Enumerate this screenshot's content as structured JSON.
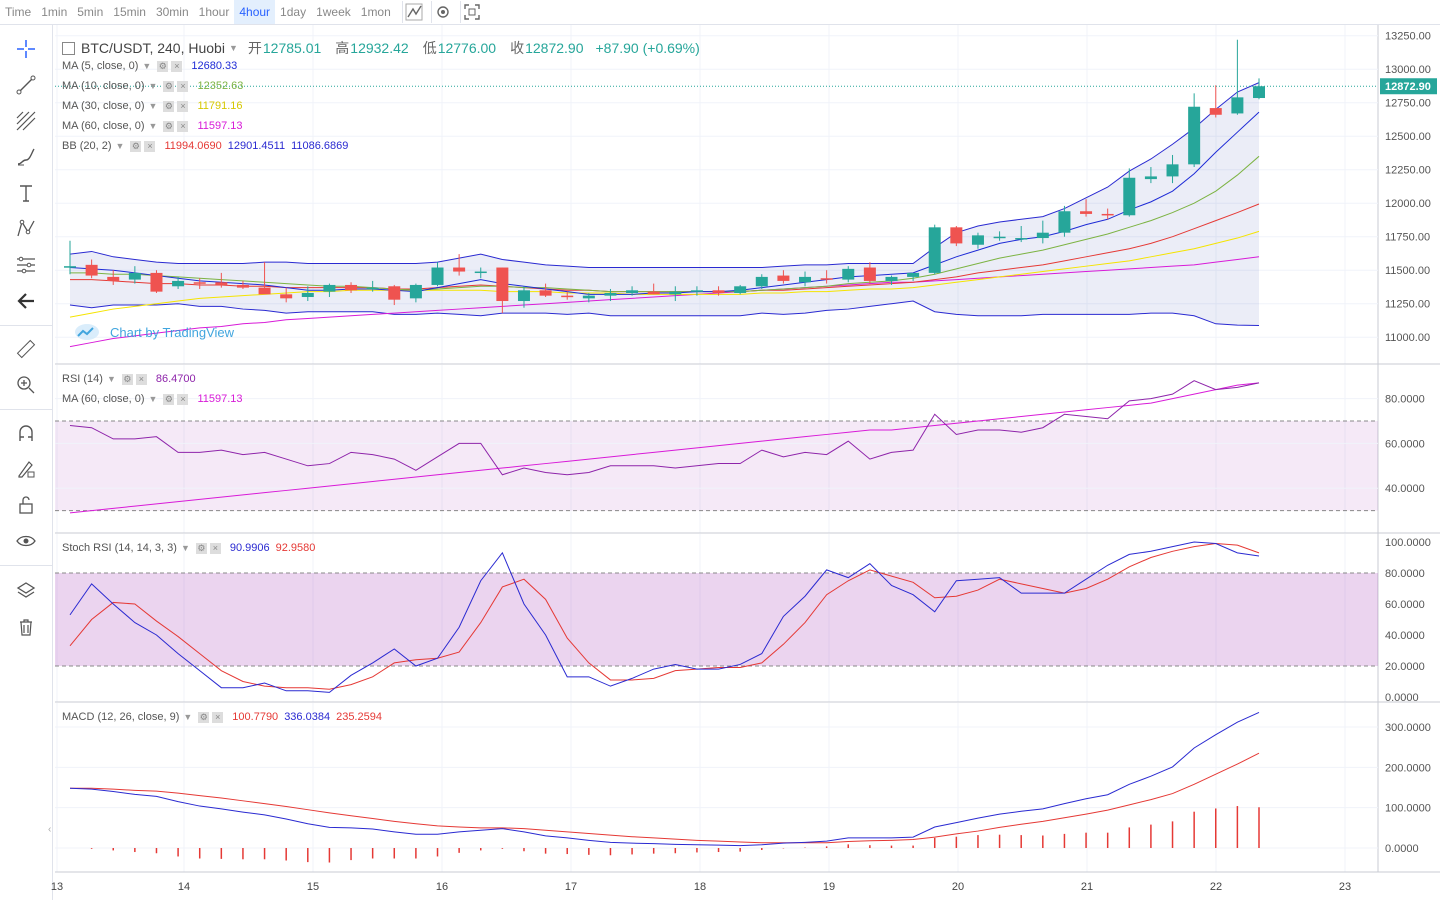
{
  "toolbar": {
    "timeframes": [
      "Time",
      "1min",
      "5min",
      "15min",
      "30min",
      "1hour",
      "4hour",
      "1day",
      "1week",
      "1mon"
    ],
    "active_timeframe": "4hour"
  },
  "header": {
    "symbol": "BTC/USDT, 240, Huobi",
    "open_label": "开",
    "open": "12785.01",
    "high_label": "高",
    "high": "12932.42",
    "low_label": "低",
    "low": "12776.00",
    "close_label": "收",
    "close": "12872.90",
    "change": "+87.90 (+0.69%)"
  },
  "indicators": {
    "ma5": {
      "name": "MA (5, close, 0)",
      "value": "12680.33",
      "color": "#1e2bd6"
    },
    "ma10": {
      "name": "MA (10, close, 0)",
      "value": "12352.63",
      "color": "#7cb342"
    },
    "ma30": {
      "name": "MA (30, close, 0)",
      "value": "11791.16",
      "color": "#f5e400"
    },
    "ma60": {
      "name": "MA (60, close, 0)",
      "value": "11597.13",
      "color": "#d81bd8"
    },
    "bb": {
      "name": "BB (20, 2)",
      "middle": "11994.0690",
      "upper": "12901.4511",
      "lower": "11086.6869",
      "middle_color": "#e53935",
      "band_color": "#2a2ad1"
    },
    "rsi": {
      "name": "RSI (14)",
      "value": "86.4700",
      "ma_name": "MA (60, close, 0)",
      "ma_value": "11597.13"
    },
    "stoch": {
      "name": "Stoch RSI (14, 14, 3, 3)",
      "k": "90.9906",
      "d": "92.9580"
    },
    "macd": {
      "name": "MACD (12, 26, close, 9)",
      "hist": "100.7790",
      "macd": "336.0384",
      "signal": "235.2594"
    }
  },
  "watermark": "Chart by TradingView",
  "colors": {
    "up": "#26a69a",
    "down": "#ef5350",
    "grid": "#f0f3fa"
  },
  "chart_data": {
    "type": "candlestick",
    "title": "BTC/USDT, 240, Huobi",
    "x_tick_labels": [
      "13",
      "14",
      "15",
      "16",
      "17",
      "18",
      "19",
      "20",
      "21",
      "22",
      "23"
    ],
    "price_axis": {
      "ticks": [
        "13250.00",
        "13000.00",
        "12750.00",
        "12500.00",
        "12250.00",
        "12000.00",
        "11750.00",
        "11500.00",
        "11250.00",
        "11000.00"
      ],
      "ylim": [
        10800,
        13330
      ],
      "last_price": "12872.90"
    },
    "candles_ohlc": [
      [
        11520,
        11720,
        11470,
        11530
      ],
      [
        11540,
        11580,
        11440,
        11460
      ],
      [
        11450,
        11500,
        11390,
        11420
      ],
      [
        11430,
        11530,
        11400,
        11480
      ],
      [
        11480,
        11500,
        11330,
        11340
      ],
      [
        11380,
        11450,
        11360,
        11420
      ],
      [
        11410,
        11440,
        11360,
        11400
      ],
      [
        11410,
        11480,
        11370,
        11390
      ],
      [
        11390,
        11420,
        11360,
        11370
      ],
      [
        11370,
        11560,
        11350,
        11320
      ],
      [
        11320,
        11370,
        11260,
        11290
      ],
      [
        11300,
        11380,
        11270,
        11330
      ],
      [
        11340,
        11400,
        11300,
        11390
      ],
      [
        11390,
        11410,
        11330,
        11350
      ],
      [
        11360,
        11420,
        11340,
        11370
      ],
      [
        11380,
        11390,
        11240,
        11280
      ],
      [
        11290,
        11400,
        11260,
        11390
      ],
      [
        11390,
        11560,
        11380,
        11520
      ],
      [
        11520,
        11620,
        11460,
        11490
      ],
      [
        11490,
        11520,
        11440,
        11490
      ],
      [
        11520,
        11520,
        11180,
        11270
      ],
      [
        11270,
        11380,
        11220,
        11350
      ],
      [
        11350,
        11400,
        11300,
        11310
      ],
      [
        11310,
        11340,
        11280,
        11300
      ],
      [
        11290,
        11330,
        11260,
        11310
      ],
      [
        11310,
        11360,
        11270,
        11330
      ],
      [
        11330,
        11380,
        11310,
        11350
      ],
      [
        11340,
        11400,
        11320,
        11320
      ],
      [
        11320,
        11380,
        11270,
        11340
      ],
      [
        11340,
        11380,
        11310,
        11350
      ],
      [
        11350,
        11380,
        11310,
        11330
      ],
      [
        11330,
        11390,
        11320,
        11380
      ],
      [
        11380,
        11470,
        11360,
        11450
      ],
      [
        11460,
        11500,
        11400,
        11420
      ],
      [
        11410,
        11490,
        11380,
        11450
      ],
      [
        11440,
        11500,
        11400,
        11430
      ],
      [
        11430,
        11530,
        11410,
        11510
      ],
      [
        11520,
        11560,
        11400,
        11420
      ],
      [
        11420,
        11460,
        11390,
        11450
      ],
      [
        11450,
        11480,
        11420,
        11480
      ],
      [
        11480,
        11840,
        11470,
        11820
      ],
      [
        11820,
        11830,
        11680,
        11700
      ],
      [
        11690,
        11780,
        11660,
        11760
      ],
      [
        11750,
        11790,
        11720,
        11750
      ],
      [
        11740,
        11830,
        11710,
        11740
      ],
      [
        11740,
        11870,
        11700,
        11780
      ],
      [
        11780,
        11980,
        11750,
        11940
      ],
      [
        11940,
        12030,
        11900,
        11920
      ],
      [
        11920,
        11960,
        11880,
        11910
      ],
      [
        11910,
        12260,
        11900,
        12190
      ],
      [
        12180,
        12270,
        12150,
        12200
      ],
      [
        12200,
        12360,
        12150,
        12290
      ],
      [
        12290,
        12820,
        12270,
        12720
      ],
      [
        12710,
        12880,
        12640,
        12660
      ],
      [
        12670,
        13220,
        12660,
        12790
      ],
      [
        12785,
        12932,
        12776,
        12873
      ]
    ],
    "ma5": [
      11520,
      11510,
      11500,
      11480,
      11460,
      11440,
      11420,
      11410,
      11400,
      11390,
      11370,
      11350,
      11350,
      11360,
      11360,
      11350,
      11340,
      11370,
      11400,
      11430,
      11400,
      11380,
      11360,
      11340,
      11320,
      11320,
      11320,
      11330,
      11330,
      11340,
      11340,
      11350,
      11370,
      11390,
      11410,
      11430,
      11450,
      11460,
      11470,
      11480,
      11540,
      11600,
      11650,
      11700,
      11730,
      11750,
      11790,
      11840,
      11880,
      11950,
      12010,
      12090,
      12220,
      12380,
      12530,
      12680
    ],
    "ma10": [
      11480,
      11480,
      11470,
      11470,
      11460,
      11450,
      11440,
      11430,
      11420,
      11410,
      11400,
      11390,
      11380,
      11380,
      11370,
      11360,
      11350,
      11360,
      11370,
      11380,
      11380,
      11370,
      11370,
      11360,
      11350,
      11340,
      11340,
      11340,
      11340,
      11340,
      11340,
      11340,
      11350,
      11360,
      11370,
      11380,
      11400,
      11410,
      11420,
      11440,
      11470,
      11510,
      11550,
      11590,
      11620,
      11650,
      11690,
      11730,
      11770,
      11820,
      11870,
      11930,
      12000,
      12090,
      12210,
      12350
    ],
    "ma30": [
      11150,
      11180,
      11210,
      11230,
      11250,
      11270,
      11290,
      11300,
      11310,
      11320,
      11330,
      11340,
      11340,
      11350,
      11350,
      11350,
      11350,
      11350,
      11350,
      11350,
      11340,
      11340,
      11340,
      11330,
      11330,
      11330,
      11320,
      11320,
      11320,
      11320,
      11320,
      11320,
      11330,
      11330,
      11340,
      11340,
      11350,
      11360,
      11360,
      11370,
      11390,
      11410,
      11430,
      11450,
      11470,
      11490,
      11510,
      11530,
      11550,
      11570,
      11600,
      11630,
      11660,
      11700,
      11740,
      11790
    ],
    "ma60": [
      10930,
      10960,
      10990,
      11010,
      11030,
      11050,
      11070,
      11080,
      11100,
      11110,
      11130,
      11140,
      11150,
      11160,
      11170,
      11180,
      11190,
      11200,
      11210,
      11220,
      11230,
      11240,
      11250,
      11260,
      11270,
      11280,
      11290,
      11300,
      11310,
      11320,
      11330,
      11340,
      11350,
      11360,
      11370,
      11380,
      11390,
      11400,
      11410,
      11410,
      11420,
      11430,
      11440,
      11450,
      11460,
      11470,
      11480,
      11490,
      11500,
      11510,
      11520,
      11530,
      11540,
      11560,
      11580,
      11600
    ],
    "bb_upper": [
      11620,
      11640,
      11600,
      11580,
      11560,
      11550,
      11550,
      11550,
      11550,
      11560,
      11560,
      11550,
      11550,
      11550,
      11550,
      11550,
      11550,
      11560,
      11590,
      11620,
      11580,
      11560,
      11540,
      11530,
      11520,
      11520,
      11520,
      11520,
      11520,
      11520,
      11520,
      11520,
      11520,
      11530,
      11540,
      11540,
      11550,
      11550,
      11550,
      11550,
      11670,
      11780,
      11830,
      11860,
      11880,
      11900,
      11960,
      12040,
      12120,
      12240,
      12330,
      12440,
      12560,
      12700,
      12830,
      12900
    ],
    "bb_middle": [
      11430,
      11430,
      11420,
      11410,
      11400,
      11400,
      11390,
      11390,
      11380,
      11380,
      11370,
      11370,
      11370,
      11370,
      11370,
      11360,
      11360,
      11370,
      11380,
      11390,
      11380,
      11370,
      11360,
      11350,
      11350,
      11340,
      11340,
      11340,
      11340,
      11340,
      11340,
      11340,
      11350,
      11350,
      11360,
      11370,
      11380,
      11390,
      11400,
      11410,
      11430,
      11450,
      11480,
      11500,
      11520,
      11540,
      11570,
      11600,
      11630,
      11660,
      11700,
      11750,
      11810,
      11870,
      11930,
      11994
    ],
    "bb_lower": [
      11240,
      11220,
      11240,
      11240,
      11240,
      11250,
      11230,
      11230,
      11210,
      11200,
      11180,
      11190,
      11190,
      11190,
      11190,
      11170,
      11170,
      11180,
      11170,
      11160,
      11180,
      11180,
      11180,
      11170,
      11180,
      11160,
      11160,
      11160,
      11160,
      11160,
      11160,
      11160,
      11180,
      11170,
      11180,
      11200,
      11210,
      11230,
      11250,
      11270,
      11190,
      11170,
      11160,
      11160,
      11160,
      11170,
      11170,
      11170,
      11170,
      11170,
      11180,
      11180,
      11160,
      11100,
      11090,
      11087
    ],
    "rsi": [
      68,
      67,
      62,
      62,
      63,
      56,
      56,
      57,
      55,
      56,
      53,
      50,
      51,
      56,
      55,
      53,
      48,
      54,
      60,
      60,
      46,
      49,
      47,
      46,
      47,
      50,
      50,
      50,
      49,
      50,
      51,
      51,
      57,
      54,
      56,
      55,
      61,
      53,
      56,
      57,
      73,
      64,
      66,
      66,
      65,
      67,
      73,
      72,
      71,
      79,
      80,
      82,
      88,
      84,
      85,
      87
    ],
    "rsi_ma": [
      29,
      30,
      31,
      32,
      33,
      34,
      35,
      36,
      37,
      38,
      39,
      40,
      41,
      42,
      43,
      44,
      45,
      46,
      47,
      48,
      49,
      50,
      51,
      52,
      53,
      54,
      55,
      56,
      57,
      58,
      59,
      60,
      61,
      62,
      63,
      64,
      65,
      66,
      66,
      67,
      68,
      69,
      70,
      71,
      72,
      73,
      74,
      75,
      76,
      77,
      78,
      80,
      82,
      84,
      86,
      87
    ],
    "stoch_k": [
      53,
      73,
      60,
      48,
      40,
      28,
      17,
      6,
      6,
      9,
      4,
      4,
      3,
      14,
      22,
      31,
      20,
      25,
      45,
      75,
      93,
      60,
      40,
      13,
      13,
      7,
      12,
      18,
      21,
      18,
      18,
      21,
      28,
      52,
      65,
      82,
      77,
      86,
      72,
      66,
      55,
      75,
      76,
      77,
      67,
      67,
      67,
      76,
      85,
      92,
      94,
      97,
      100,
      99,
      93,
      91
    ],
    "stoch_d": [
      33,
      50,
      61,
      60,
      49,
      39,
      28,
      17,
      10,
      7,
      6,
      6,
      5,
      8,
      13,
      22,
      24,
      25,
      29,
      48,
      71,
      76,
      63,
      38,
      22,
      11,
      11,
      12,
      17,
      18,
      19,
      19,
      22,
      34,
      48,
      66,
      75,
      82,
      78,
      74,
      64,
      65,
      69,
      76,
      73,
      70,
      67,
      70,
      76,
      84,
      90,
      94,
      97,
      99,
      98,
      93
    ],
    "macd_line": [
      148,
      146,
      140,
      133,
      128,
      115,
      104,
      97,
      89,
      82,
      72,
      60,
      51,
      50,
      47,
      40,
      34,
      34,
      40,
      44,
      48,
      40,
      30,
      25,
      19,
      14,
      12,
      11,
      9,
      8,
      7,
      6,
      8,
      12,
      14,
      17,
      25,
      25,
      25,
      27,
      52,
      63,
      74,
      84,
      91,
      97,
      110,
      122,
      132,
      158,
      178,
      201,
      248,
      281,
      312,
      336
    ],
    "macd_signal": [
      148,
      148,
      146,
      143,
      141,
      136,
      130,
      124,
      117,
      110,
      103,
      95,
      87,
      80,
      73,
      66,
      60,
      55,
      52,
      50,
      50,
      48,
      44,
      40,
      36,
      32,
      28,
      25,
      22,
      19,
      17,
      15,
      13,
      13,
      13,
      13,
      16,
      18,
      19,
      21,
      27,
      35,
      42,
      51,
      59,
      66,
      75,
      84,
      94,
      107,
      120,
      135,
      158,
      183,
      208,
      235
    ],
    "macd_hist": [
      0,
      -2,
      -6,
      -10,
      -13,
      -21,
      -26,
      -27,
      -28,
      -28,
      -31,
      -35,
      -36,
      -30,
      -26,
      -26,
      -26,
      -21,
      -12,
      -6,
      -2,
      -8,
      -14,
      -15,
      -17,
      -18,
      -16,
      -14,
      -13,
      -11,
      -10,
      -9,
      -5,
      -1,
      1,
      4,
      9,
      7,
      6,
      6,
      25,
      28,
      32,
      33,
      32,
      31,
      35,
      38,
      38,
      51,
      58,
      66,
      90,
      98,
      104,
      101
    ]
  }
}
